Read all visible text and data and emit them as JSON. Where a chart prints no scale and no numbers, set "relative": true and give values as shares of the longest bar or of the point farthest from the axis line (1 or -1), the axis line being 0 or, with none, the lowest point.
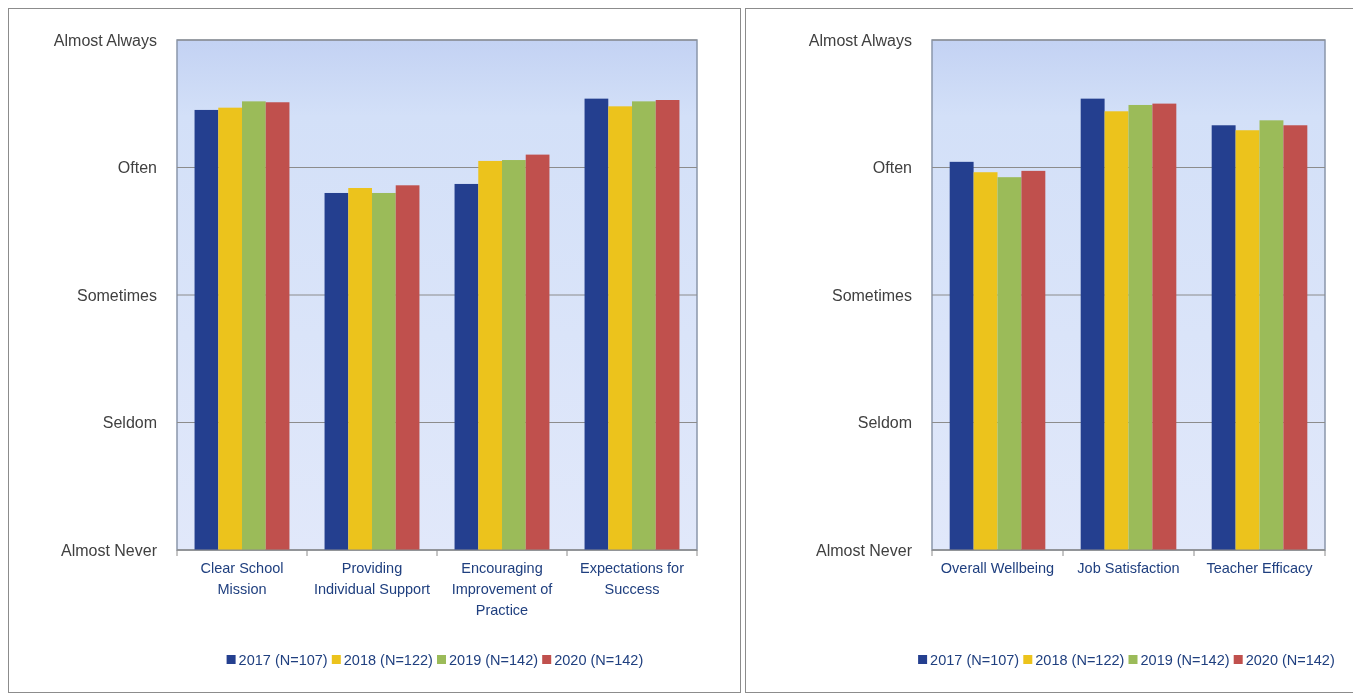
{
  "chart_data": [
    {
      "type": "bar",
      "relative": true,
      "categories": [
        "Clear School Mission",
        "Providing Individual Support",
        "Encouraging Improvement of Practice",
        "Expectations for Success"
      ],
      "series": [
        {
          "name": "2017 (N=107)",
          "color": "#243f8f",
          "values": [
            0.975,
            0.791,
            0.811,
            1
          ]
        },
        {
          "name": "2018 (N=122)",
          "color": "#ecc31c",
          "values": [
            0.98,
            0.802,
            0.862,
            0.983
          ]
        },
        {
          "name": "2019 (N=142)",
          "color": "#9bbb59",
          "values": [
            0.994,
            0.791,
            0.864,
            0.994
          ]
        },
        {
          "name": "2020 (N=142)",
          "color": "#c0504d",
          "values": [
            0.992,
            0.808,
            0.876,
            0.997
          ]
        }
      ],
      "annotations": [
        "Almost Always",
        "Often",
        "Sometimes",
        "Seldom",
        "Almost Never"
      ],
      "grid": true,
      "legend": "bottom"
    },
    {
      "type": "bar",
      "relative": true,
      "categories": [
        "Overall Wellbeing",
        "Job Satisfaction",
        "Teacher Efficacy"
      ],
      "series": [
        {
          "name": "2017 (N=107)",
          "color": "#243f8f",
          "values": [
            0.86,
            1,
            0.941
          ]
        },
        {
          "name": "2018 (N=122)",
          "color": "#ecc31c",
          "values": [
            0.837,
            0.972,
            0.93
          ]
        },
        {
          "name": "2019 (N=142)",
          "color": "#9bbb59",
          "values": [
            0.826,
            0.986,
            0.952
          ]
        },
        {
          "name": "2020 (N=142)",
          "color": "#c0504d",
          "values": [
            0.84,
            0.989,
            0.941
          ]
        }
      ],
      "annotations": [
        "Almost Always",
        "Often",
        "Sometimes",
        "Seldom",
        "Almost Never"
      ],
      "grid": true,
      "legend": "bottom"
    }
  ]
}
